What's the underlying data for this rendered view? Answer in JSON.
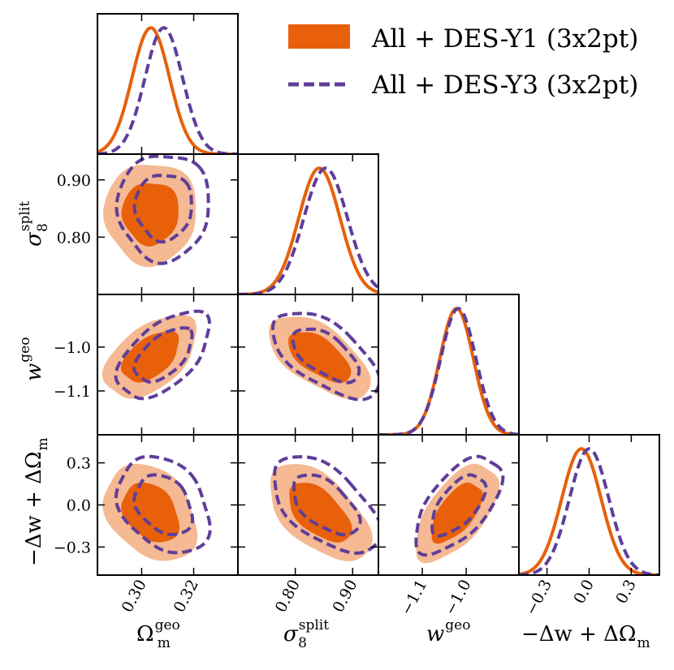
{
  "chart_data": {
    "type": "corner",
    "parameters": [
      {
        "key": "om",
        "label": "Ω",
        "sub": "m",
        "sup": "geo",
        "range": [
          0.283,
          0.337
        ],
        "ticks": [
          0.3,
          0.32
        ],
        "tick_labels": [
          "0.30",
          "0.32"
        ]
      },
      {
        "key": "s8",
        "label": "σ",
        "sub": "8",
        "sup": "split",
        "range": [
          0.7,
          0.945
        ],
        "ticks": [
          0.8,
          0.9
        ],
        "tick_labels": [
          "0.80",
          "0.90"
        ]
      },
      {
        "key": "w",
        "label": "w",
        "sub": "",
        "sup": "geo",
        "range": [
          -1.2,
          -0.88
        ],
        "ticks": [
          -1.1,
          -1.0
        ],
        "tick_labels": [
          "−1.1",
          "−1.0"
        ]
      },
      {
        "key": "dw",
        "label": "−Δw + ΔΩ",
        "sub": "m",
        "sup": "",
        "range": [
          -0.5,
          0.5
        ],
        "ticks": [
          -0.3,
          0.0,
          0.3
        ],
        "tick_labels": [
          "−0.3",
          "0.0",
          "0.3"
        ]
      }
    ],
    "series": [
      {
        "name": "All + DES-Y1 (3x2pt)",
        "style": "filled",
        "color_line": "#e8600a",
        "color_inner": "#e8600a",
        "color_outer": "#f5b993",
        "means": [
          0.3035,
          0.842,
          -1.022,
          -0.055
        ],
        "sigmas": [
          0.0072,
          0.036,
          0.038,
          0.14
        ],
        "correlations": {
          "om-s8": 0.02,
          "om-w": 0.5,
          "s8-w": -0.6,
          "om-dw": -0.3,
          "s8-dw": -0.55,
          "w-dw": 0.6
        }
      },
      {
        "name": "All + DES-Y3 (3x2pt)",
        "style": "dashed",
        "color_line": "#5f3e99",
        "means": [
          0.3085,
          0.853,
          -1.018,
          0.0
        ],
        "sigmas": [
          0.0072,
          0.038,
          0.04,
          0.14
        ],
        "correlations": {
          "om-s8": 0.02,
          "om-w": 0.55,
          "s8-w": -0.6,
          "om-dw": -0.3,
          "s8-dw": -0.55,
          "w-dw": 0.6
        }
      }
    ]
  },
  "legend": {
    "entry1": "All + DES-Y1 (3x2pt)",
    "entry2": "All + DES-Y3 (3x2pt)"
  },
  "axis_labels": {
    "om_main": "Ω",
    "om_sub": "m",
    "om_sup": "geo",
    "s8_main": "σ",
    "s8_sub": "8",
    "s8_sup": "split",
    "w_main": "w",
    "w_sup": "geo",
    "dw_main": "−Δw + ΔΩ",
    "dw_sub": "m"
  },
  "colors": {
    "orange": "#e8600a",
    "light_orange": "#f5b993",
    "purple": "#5f3e99"
  }
}
